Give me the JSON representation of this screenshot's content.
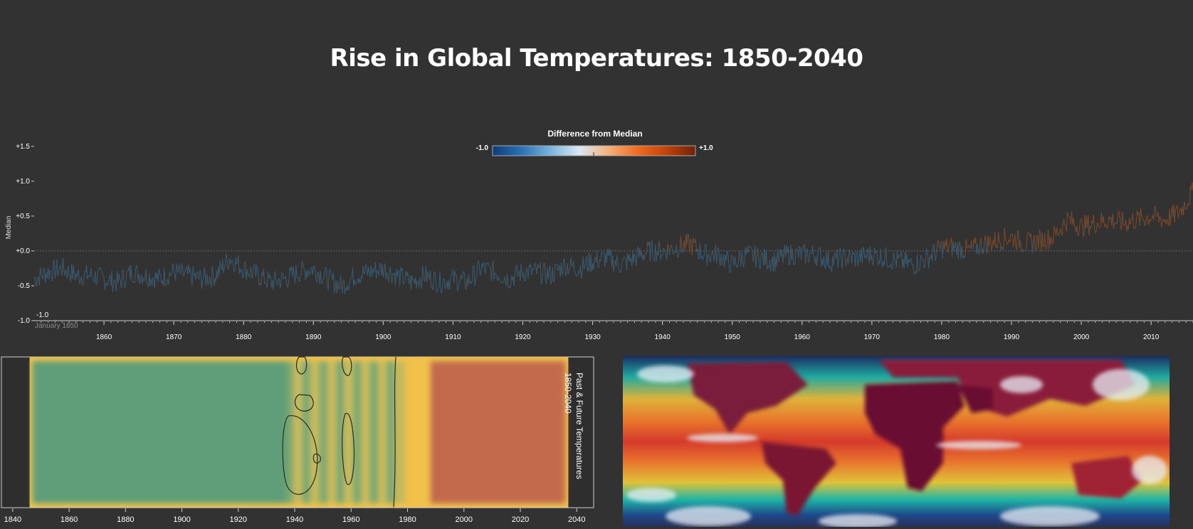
{
  "title": "Rise in Global Temperatures: 1850-2040",
  "legend": {
    "title": "Difference from Median",
    "min_label": "-1.0",
    "max_label": "+1.0",
    "colors": [
      "#0d3b7a",
      "#2a73b5",
      "#7ab4dd",
      "#d9e9f3",
      "#f5b07a",
      "#f06b1e",
      "#c24208",
      "#6e230a"
    ]
  },
  "colors": {
    "background": "#323232",
    "line_cold": "#3b5a6e",
    "line_warm": "#7a4a2c",
    "heat_green": "#5e9e78",
    "heat_yellow": "#f1c14a",
    "heat_orange": "#c36b4e"
  },
  "chart_data": [
    {
      "type": "line",
      "ylabel": "Median",
      "y_ticks": [
        "+1.5",
        "+1.0",
        "+0.5",
        "+0.0",
        "-0.5",
        "-1.0"
      ],
      "ylim": [
        -1.0,
        1.6
      ],
      "x_ticks": [
        "1860",
        "1870",
        "1880",
        "1890",
        "1900",
        "1910",
        "1920",
        "1930",
        "1940",
        "1950",
        "1960",
        "1970",
        "1980",
        "1990",
        "2000",
        "2010"
      ],
      "xlim": [
        1850,
        2016
      ],
      "annotation_value": "-1.0",
      "annotation_date": "January 1850",
      "reference_line": 0.0,
      "series": [
        {
          "years": [
            1850,
            1852,
            1854,
            1856,
            1858,
            1860,
            1862,
            1864,
            1866,
            1868,
            1870,
            1872,
            1874,
            1876,
            1878,
            1880,
            1882,
            1884,
            1886,
            1888,
            1890,
            1892,
            1894,
            1896,
            1898,
            1900,
            1902,
            1904,
            1906,
            1908,
            1910,
            1912,
            1914,
            1916,
            1918,
            1920,
            1922,
            1924,
            1926,
            1928,
            1930,
            1932,
            1934,
            1936,
            1938,
            1940,
            1942,
            1944,
            1946,
            1948,
            1950,
            1952,
            1954,
            1956,
            1958,
            1960,
            1962,
            1964,
            1966,
            1968,
            1970,
            1972,
            1974,
            1976,
            1978,
            1980,
            1982,
            1984,
            1986,
            1988,
            1990,
            1992,
            1994,
            1996,
            1998,
            2000,
            2002,
            2004,
            2006,
            2008,
            2010,
            2012,
            2014,
            2016
          ],
          "values": [
            -0.4,
            -0.3,
            -0.25,
            -0.35,
            -0.35,
            -0.4,
            -0.45,
            -0.3,
            -0.35,
            -0.4,
            -0.3,
            -0.35,
            -0.4,
            -0.35,
            -0.1,
            -0.25,
            -0.35,
            -0.45,
            -0.4,
            -0.3,
            -0.25,
            -0.4,
            -0.5,
            -0.35,
            -0.3,
            -0.25,
            -0.35,
            -0.45,
            -0.35,
            -0.45,
            -0.4,
            -0.45,
            -0.25,
            -0.3,
            -0.4,
            -0.3,
            -0.3,
            -0.35,
            -0.2,
            -0.25,
            -0.15,
            -0.1,
            -0.2,
            -0.1,
            0.0,
            0.0,
            0.05,
            0.1,
            -0.05,
            -0.05,
            -0.2,
            -0.05,
            -0.1,
            -0.15,
            -0.05,
            -0.05,
            -0.05,
            -0.15,
            -0.1,
            -0.1,
            -0.05,
            -0.1,
            -0.15,
            -0.2,
            -0.1,
            0.05,
            0.05,
            0.0,
            0.1,
            0.15,
            0.2,
            0.1,
            0.15,
            0.2,
            0.45,
            0.35,
            0.4,
            0.45,
            0.4,
            0.45,
            0.5,
            0.45,
            0.55,
            0.85
          ]
        }
      ]
    },
    {
      "type": "heatmap",
      "title": "Past & Future Temperatures 1850-2040",
      "x_ticks": [
        "1840",
        "1860",
        "1880",
        "1900",
        "1920",
        "1940",
        "1960",
        "1980",
        "2000",
        "2020",
        "2040"
      ],
      "xlim": [
        1836,
        2046
      ],
      "bands": [
        {
          "from": 1847,
          "to": 1937,
          "level": "cool"
        },
        {
          "from": 1937,
          "to": 1979,
          "level": "mixed"
        },
        {
          "from": 1979,
          "to": 1988,
          "level": "warm"
        },
        {
          "from": 1988,
          "to": 2036,
          "level": "hot"
        }
      ]
    }
  ]
}
